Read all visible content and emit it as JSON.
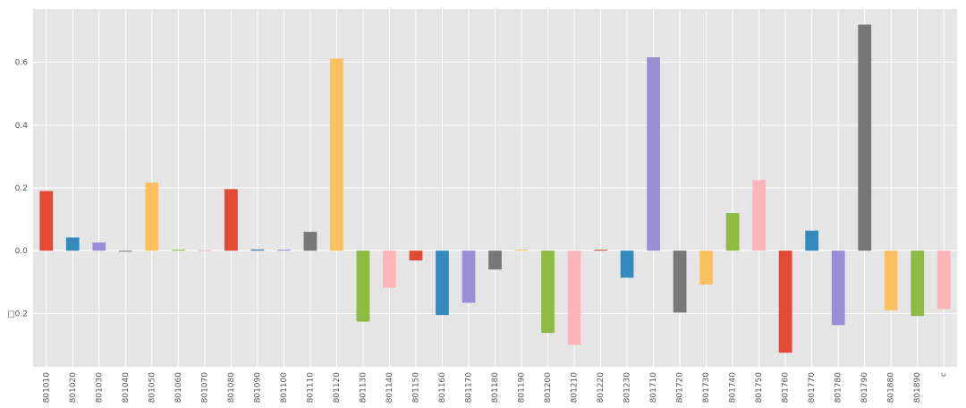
{
  "chart_data": {
    "type": "bar",
    "title": "",
    "xlabel": "",
    "ylabel": "",
    "ylim": [
      -0.37,
      0.77
    ],
    "grid": true,
    "legend": "none",
    "yticks": [
      {
        "value": 0.6,
        "label": "0.6"
      },
      {
        "value": 0.4,
        "label": "0.4"
      },
      {
        "value": 0.2,
        "label": "0.2"
      },
      {
        "value": 0.0,
        "label": "0.0"
      },
      {
        "value": -0.2,
        "label": "□0.2"
      }
    ],
    "categories": [
      "801010",
      "801020",
      "801030",
      "801040",
      "801050",
      "801060",
      "801070",
      "801080",
      "801090",
      "801100",
      "801110",
      "801120",
      "801130",
      "801140",
      "801150",
      "801160",
      "801170",
      "801180",
      "801190",
      "801200",
      "801210",
      "801220",
      "801230",
      "801710",
      "801720",
      "801730",
      "801740",
      "801750",
      "801760",
      "801770",
      "801780",
      "801790",
      "801880",
      "801890",
      "c"
    ],
    "values": [
      0.19,
      0.042,
      0.026,
      -0.003,
      0.217,
      0.003,
      0.002,
      0.196,
      0.004,
      0.003,
      0.06,
      0.612,
      -0.226,
      -0.118,
      -0.031,
      -0.205,
      -0.166,
      -0.06,
      0.003,
      -0.262,
      -0.3,
      0.003,
      -0.086,
      0.616,
      -0.197,
      -0.108,
      0.12,
      0.225,
      -0.325,
      0.064,
      -0.237,
      0.72,
      -0.19,
      -0.208,
      -0.186
    ],
    "colors": [
      "#E24A33",
      "#348ABD",
      "#988ED5",
      "#777777",
      "#FBC15E",
      "#8EBA42",
      "#FFB5B8"
    ]
  }
}
